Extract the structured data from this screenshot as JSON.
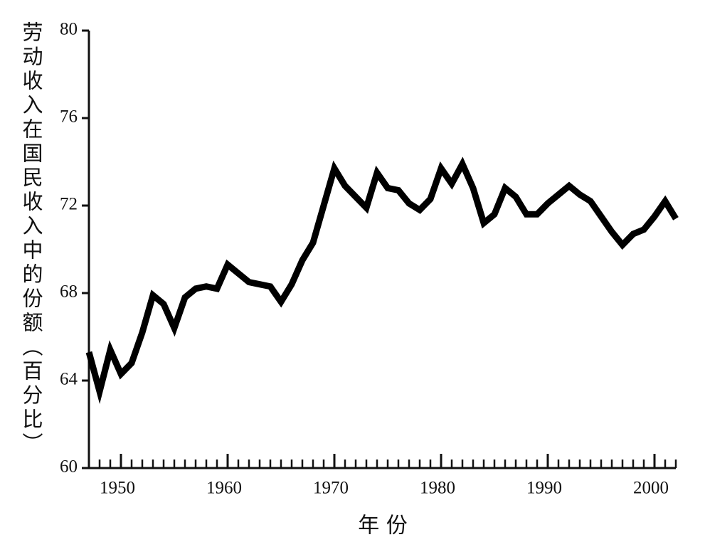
{
  "chart_data": {
    "type": "line",
    "y_label": "劳动收入在国民收入中的份额（百分比）",
    "x_label": "年 份",
    "x": [
      1947,
      1948,
      1949,
      1950,
      1951,
      1952,
      1953,
      1954,
      1955,
      1956,
      1957,
      1958,
      1959,
      1960,
      1961,
      1962,
      1963,
      1964,
      1965,
      1966,
      1967,
      1968,
      1969,
      1970,
      1971,
      1972,
      1973,
      1974,
      1975,
      1976,
      1977,
      1978,
      1979,
      1980,
      1981,
      1982,
      1983,
      1984,
      1985,
      1986,
      1987,
      1988,
      1989,
      1990,
      1991,
      1992,
      1993,
      1994,
      1995,
      1996,
      1997,
      1998,
      1999,
      2000,
      2001,
      2002
    ],
    "values": [
      65.3,
      63.5,
      65.4,
      64.3,
      64.8,
      66.2,
      67.9,
      67.5,
      66.4,
      67.8,
      68.2,
      68.3,
      68.2,
      69.3,
      68.9,
      68.5,
      68.4,
      68.3,
      67.6,
      68.4,
      69.5,
      70.3,
      72.0,
      73.7,
      72.9,
      72.4,
      71.9,
      73.5,
      72.8,
      72.7,
      72.1,
      71.8,
      72.3,
      73.7,
      73.0,
      73.9,
      72.8,
      71.2,
      71.6,
      72.8,
      72.4,
      71.6,
      71.6,
      72.1,
      72.5,
      72.9,
      72.5,
      72.2,
      71.5,
      70.8,
      70.2,
      70.7,
      70.9,
      71.5,
      72.2,
      71.4
    ],
    "color": "#000000",
    "xlim": [
      1947,
      2002
    ],
    "xticks": [
      1950,
      1960,
      1970,
      1980,
      1990,
      2000
    ],
    "ylim": [
      60,
      80
    ],
    "yticks": [
      60,
      64,
      68,
      72,
      76,
      80
    ]
  }
}
